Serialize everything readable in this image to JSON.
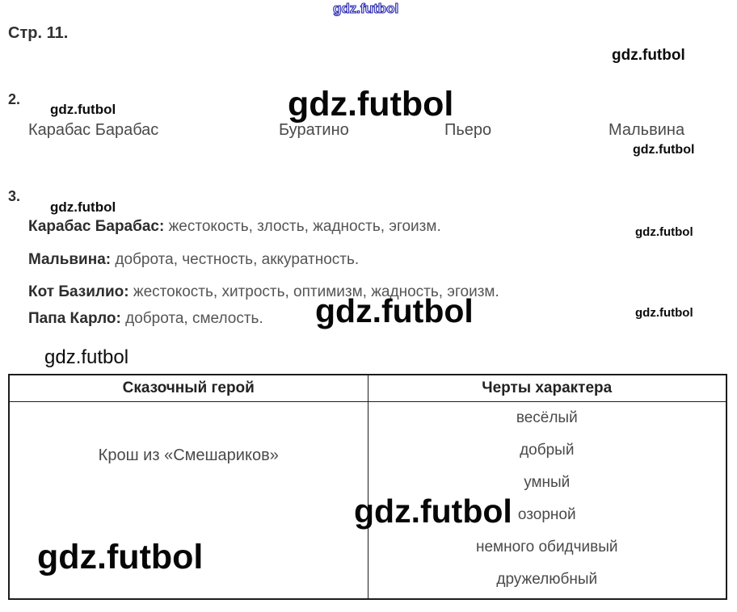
{
  "watermark": {
    "text": "gdz.futbol",
    "blue": "#2a2ab0",
    "black": "#0c0c0c"
  },
  "page": {
    "title": "Стр. 11."
  },
  "section2": {
    "number": "2.",
    "names": [
      "Карабас Барабас",
      "Буратино",
      "Пьеро",
      "Мальвина"
    ]
  },
  "section3": {
    "number": "3.",
    "items": [
      {
        "name": "Карабас Барабас:",
        "traits": " жестокость, злость, жадность, эгоизм."
      },
      {
        "name": "Мальвина:",
        "traits": " доброта, честность, аккуратность."
      },
      {
        "name": "Кот Базилио:",
        "traits": " жестокость, хитрость, оптимизм, жадность, эгоизм."
      },
      {
        "name": "Папа Карло:",
        "traits": " доброта, смелость."
      }
    ]
  },
  "table": {
    "headers": [
      "Сказочный герой",
      "Черты характера"
    ],
    "rows": [
      {
        "hero": "Крош из «Смешариков»",
        "traits": [
          "весёлый",
          "добрый",
          "умный",
          "озорной",
          "немного обидчивый",
          "дружелюбный"
        ]
      }
    ]
  }
}
